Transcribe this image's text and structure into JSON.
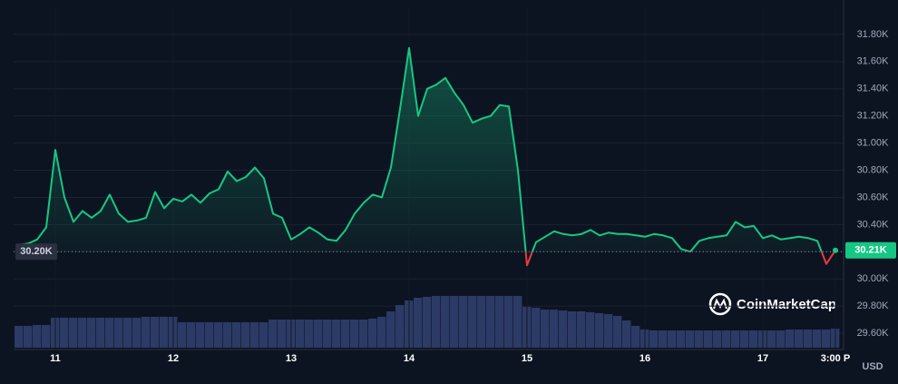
{
  "chart_data": {
    "type": "line",
    "categories": [
      null,
      null,
      null,
      null,
      "11",
      null,
      null,
      null,
      null,
      null,
      null,
      null,
      null,
      null,
      null,
      null,
      null,
      "12",
      null,
      null,
      null,
      null,
      null,
      null,
      null,
      null,
      null,
      null,
      null,
      null,
      "13",
      null,
      null,
      null,
      null,
      null,
      null,
      null,
      null,
      null,
      null,
      null,
      null,
      "14",
      null,
      null,
      null,
      null,
      null,
      null,
      null,
      null,
      null,
      null,
      null,
      null,
      "15",
      null,
      null,
      null,
      null,
      null,
      null,
      null,
      null,
      null,
      null,
      null,
      null,
      "16",
      null,
      null,
      null,
      null,
      null,
      null,
      null,
      null,
      null,
      null,
      null,
      null,
      "17",
      null,
      null,
      null,
      null,
      null,
      null,
      null,
      "3:00 P"
    ],
    "series": [
      {
        "color": "#16c784",
        "values": [
          30250,
          30260,
          30290,
          30380,
          30950,
          30600,
          30420,
          30500,
          30450,
          30500,
          30620,
          30480,
          30420,
          30430,
          30450,
          30640,
          30520,
          30590,
          30570,
          30620,
          30560,
          30630,
          30660,
          30790,
          30720,
          30750,
          30820,
          30740,
          30480,
          30450,
          30290,
          30330,
          30380,
          30340,
          30290,
          30280,
          30360,
          30480,
          30560,
          30620,
          30600,
          30820,
          31250,
          31700,
          31200,
          31400,
          31430,
          31480,
          31370,
          31280,
          31150,
          31180,
          31200,
          31280,
          31270,
          30800,
          30100,
          30270,
          30310,
          30350,
          30330,
          30320,
          30330,
          30360,
          30320,
          30340,
          30330,
          30330,
          30320,
          30310,
          30330,
          30320,
          30300,
          30220,
          30200,
          30280,
          30300,
          30310,
          30320,
          30420,
          30380,
          30390,
          30300,
          30320,
          30290,
          30300,
          30310,
          30300,
          30280,
          30110,
          30210
        ]
      }
    ],
    "below_color": "#ea3943",
    "volume": {
      "color": "#2c3a66",
      "values": [
        24,
        24,
        25,
        25,
        33,
        33,
        33,
        33,
        33,
        33,
        33,
        33,
        33,
        33,
        34,
        34,
        34,
        34,
        28,
        28,
        28,
        28,
        28,
        28,
        28,
        28,
        28,
        28,
        31,
        31,
        31,
        31,
        31,
        31,
        31,
        31,
        31,
        31,
        31,
        32,
        34,
        40,
        47,
        52,
        55,
        56,
        57,
        57,
        57,
        57,
        57,
        57,
        57,
        57,
        57,
        57,
        45,
        44,
        42,
        42,
        41,
        40,
        40,
        39,
        38,
        37,
        35,
        30,
        24,
        20,
        19,
        19,
        19,
        19,
        19,
        19,
        19,
        19,
        19,
        19,
        19,
        19,
        19,
        19,
        19,
        20,
        20,
        20,
        20,
        20,
        21
      ]
    },
    "ylim": [
      29500,
      32000
    ],
    "yticks": [
      {
        "value": 29600,
        "label": "29.60K"
      },
      {
        "value": 29800,
        "label": "29.80K"
      },
      {
        "value": 30000,
        "label": "30.00K"
      },
      {
        "value": 30200,
        "label": "30.20K"
      },
      {
        "value": 30400,
        "label": "30.40K"
      },
      {
        "value": 30600,
        "label": "30.60K"
      },
      {
        "value": 30800,
        "label": "30.80K"
      },
      {
        "value": 31000,
        "label": "31.00K"
      },
      {
        "value": 31200,
        "label": "31.20K"
      },
      {
        "value": 31400,
        "label": "31.40K"
      },
      {
        "value": 31600,
        "label": "31.60K"
      },
      {
        "value": 31800,
        "label": "31.80K"
      }
    ],
    "baseline": {
      "value": 30200,
      "label": "30.20K"
    },
    "last_price": {
      "value": 30210,
      "label": "30.21K"
    },
    "currency": "USD",
    "watermark": "CoinMarketCap",
    "grid": true
  }
}
